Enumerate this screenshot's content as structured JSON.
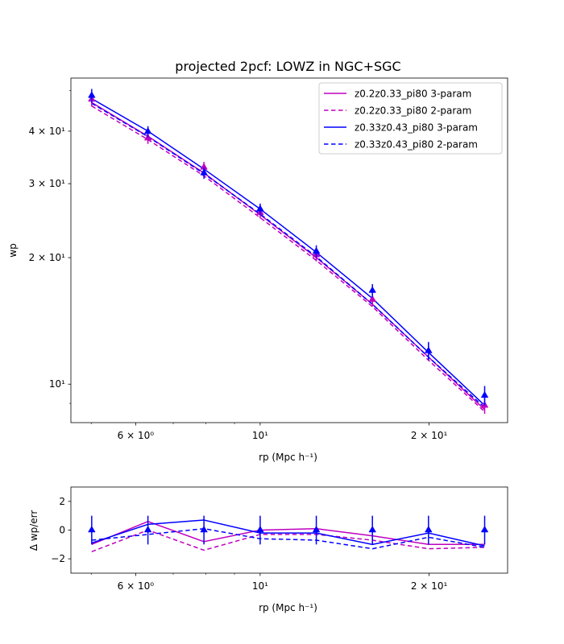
{
  "chart_data": [
    {
      "type": "line",
      "title": "projected 2pcf: LOWZ in NGC+SGC",
      "xlabel": "rp (Mpc h⁻¹)",
      "ylabel": "wp",
      "xscale": "log",
      "yscale": "log",
      "xlim": [
        4.6,
        27.6
      ],
      "ylim": [
        8.1,
        53.5
      ],
      "xticks": [
        {
          "value": 6,
          "label": "6 × 10⁰"
        },
        {
          "value": 10,
          "label": "10¹"
        },
        {
          "value": 20,
          "label": "2 × 10¹"
        }
      ],
      "yticks": [
        {
          "value": 10,
          "label": "10¹"
        },
        {
          "value": 20,
          "label": "2 × 10¹"
        },
        {
          "value": 30,
          "label": "3 × 10¹"
        },
        {
          "value": 40,
          "label": "4 × 10¹"
        }
      ],
      "legend_position": "top-right",
      "x": [
        5.01,
        6.31,
        7.94,
        10.0,
        12.59,
        15.85,
        19.95,
        25.12
      ],
      "series": [
        {
          "name": "z0.2z0.33_pi80 3-param",
          "color": "#bf00bf",
          "style": "solid",
          "values": [
            46.8,
            38.9,
            31.8,
            25.3,
            20.0,
            15.5,
            11.6,
            8.7
          ]
        },
        {
          "name": "z0.2z0.33_pi80 2-param",
          "color": "#bf00bf",
          "style": "dashed",
          "values": [
            45.9,
            38.2,
            31.3,
            24.9,
            19.7,
            15.3,
            11.4,
            8.6
          ]
        },
        {
          "name": "z0.33z0.43_pi80 3-param",
          "color": "#0000ff",
          "style": "solid",
          "values": [
            47.8,
            40.0,
            32.5,
            26.1,
            20.6,
            16.0,
            11.9,
            8.9
          ]
        },
        {
          "name": "z0.33z0.43_pi80 2-param",
          "color": "#0000ff",
          "style": "dashed",
          "values": [
            46.6,
            38.8,
            31.7,
            25.4,
            20.1,
            15.5,
            11.6,
            8.8
          ]
        }
      ],
      "observed": [
        {
          "color": "#bf00bf",
          "marker": "triangle",
          "values": [
            47.6,
            38.5,
            32.8,
            25.6,
            20.3,
            15.9,
            12.0,
            8.9
          ],
          "errors": [
            1.8,
            1.2,
            1.0,
            0.8,
            0.7,
            0.6,
            0.5,
            0.4
          ]
        },
        {
          "color": "#0000ff",
          "marker": "triangle",
          "values": [
            48.6,
            39.9,
            31.8,
            26.1,
            20.7,
            16.7,
            12.0,
            9.4
          ],
          "errors": [
            1.8,
            1.2,
            1.0,
            0.8,
            0.7,
            0.6,
            0.6,
            0.5
          ]
        }
      ]
    },
    {
      "type": "line",
      "xlabel": "rp (Mpc h⁻¹)",
      "ylabel": "Δ wp/err",
      "xscale": "log",
      "xlim": [
        4.6,
        27.6
      ],
      "ylim": [
        -3,
        3
      ],
      "xticks": [
        {
          "value": 6,
          "label": "6 × 10⁰"
        },
        {
          "value": 10,
          "label": "10¹"
        },
        {
          "value": 20,
          "label": "2 × 10¹"
        }
      ],
      "yticks": [
        {
          "value": -2,
          "label": "−2"
        },
        {
          "value": 0,
          "label": "0"
        },
        {
          "value": 2,
          "label": "2"
        }
      ],
      "x": [
        5.01,
        6.31,
        7.94,
        10.0,
        12.59,
        15.85,
        19.95,
        25.12
      ],
      "series": [
        {
          "color": "#bf00bf",
          "style": "solid",
          "values": [
            -1.0,
            0.6,
            -0.8,
            0.0,
            0.1,
            -0.4,
            -1.0,
            -1.0
          ]
        },
        {
          "color": "#bf00bf",
          "style": "dashed",
          "values": [
            -1.5,
            0.0,
            -1.4,
            -0.3,
            -0.3,
            -0.7,
            -1.3,
            -1.2
          ]
        },
        {
          "color": "#0000ff",
          "style": "solid",
          "values": [
            -0.9,
            0.4,
            0.7,
            -0.2,
            -0.2,
            -1.0,
            -0.2,
            -1.1
          ]
        },
        {
          "color": "#0000ff",
          "style": "dashed",
          "values": [
            -0.7,
            -0.3,
            0.1,
            -0.6,
            -0.7,
            -1.3,
            -0.5,
            -1.2
          ]
        }
      ],
      "observed": [
        {
          "color": "#0000ff",
          "marker": "triangle",
          "values": [
            0,
            0,
            0,
            0,
            0,
            0,
            0,
            0
          ],
          "errors": [
            1,
            1,
            1,
            1,
            1,
            1,
            1,
            1
          ]
        }
      ]
    }
  ]
}
